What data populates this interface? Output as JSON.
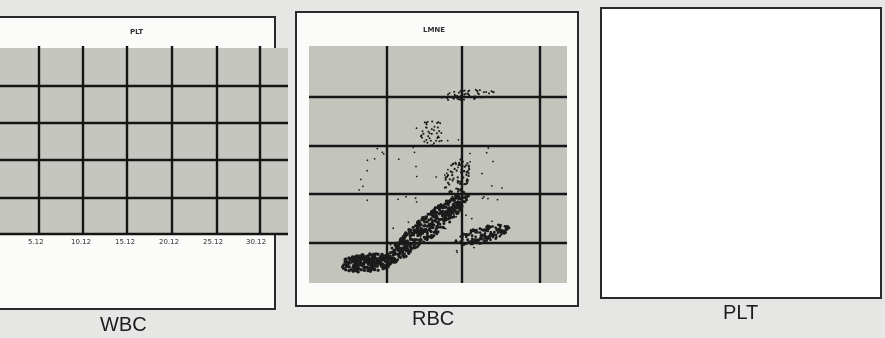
{
  "wbc": {
    "plot_title": "PLT",
    "caption": "WBC",
    "x_ticks": [
      "5.12",
      "10.12",
      "15.12",
      "20.12",
      "25.12",
      "30.12"
    ]
  },
  "rbc": {
    "plot_title": "LMNE",
    "caption": "RBC"
  },
  "plt": {
    "caption": "PLT"
  },
  "colors": {
    "plot_fill": "#c2c4bd",
    "grid": "#141414",
    "dots": "#1b1b1b"
  }
}
